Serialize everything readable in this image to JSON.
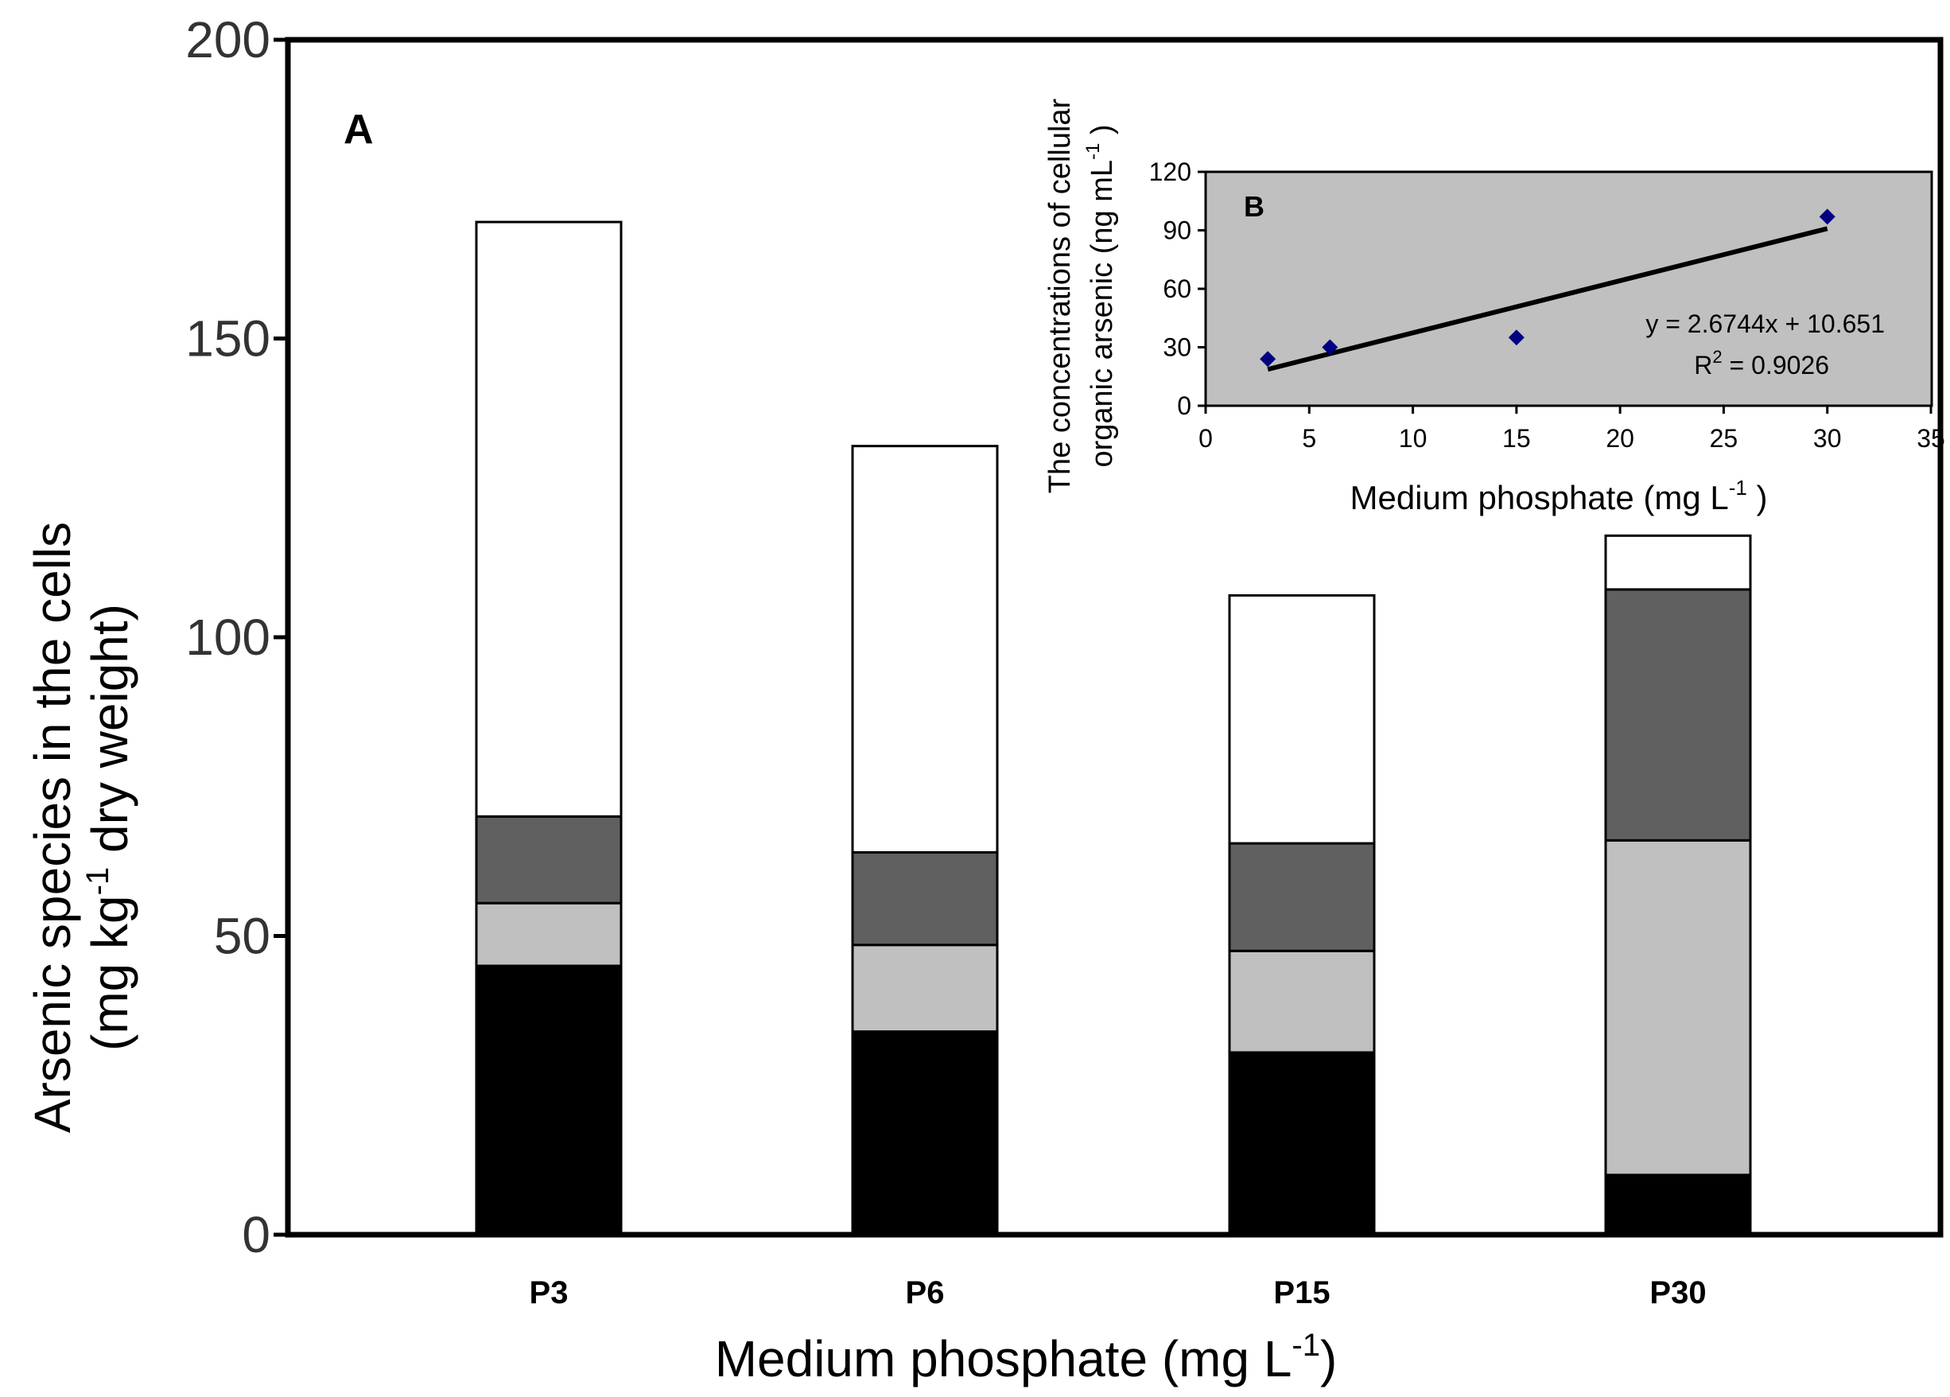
{
  "chart_data": [
    {
      "panel": "A",
      "type": "bar",
      "stacked": true,
      "categories": [
        "P3",
        "P6",
        "P15",
        "P30"
      ],
      "series": [
        {
          "name": "black segment",
          "color": "#000000",
          "values": [
            45,
            34,
            30.5,
            10
          ]
        },
        {
          "name": "light grey segment",
          "color": "#c0c0c0",
          "values": [
            10.5,
            14.5,
            17,
            56
          ]
        },
        {
          "name": "dark grey segment",
          "color": "#606060",
          "values": [
            14.5,
            15.5,
            18,
            42
          ]
        },
        {
          "name": "white segment",
          "color": "#ffffff",
          "values": [
            99.5,
            68,
            41.5,
            9
          ]
        }
      ],
      "ylim": [
        0,
        200
      ],
      "yticks": [
        "0",
        "50",
        "100",
        "150",
        "200"
      ],
      "ylabel_line1": "Arsenic species in the cells",
      "ylabel_line2_pre": "(mg kg",
      "ylabel_line2_sup": "-1",
      "ylabel_line2_post": " dry weight)",
      "xlabel_pre": "Medium phosphate (mg L",
      "xlabel_sup": "-1",
      "xlabel_post": ")"
    },
    {
      "panel": "B",
      "type": "scatter",
      "x": [
        3,
        6,
        15,
        30
      ],
      "y": [
        24,
        30,
        35,
        97
      ],
      "xlim": [
        0,
        35
      ],
      "ylim": [
        0,
        120
      ],
      "xticks": [
        "0",
        "5",
        "10",
        "15",
        "20",
        "25",
        "30",
        "35"
      ],
      "yticks": [
        "0",
        "30",
        "60",
        "90",
        "120"
      ],
      "trendline": {
        "slope": 2.6744,
        "intercept": 10.651,
        "x_range": [
          3,
          30
        ]
      },
      "equation": "y = 2.6744x + 10.651",
      "r2_pre": "R",
      "r2_sup": "2",
      "r2_post": " = 0.9026",
      "ylabel_line1": "The concentrations of  cellular",
      "ylabel_line2_pre": "organic  arsenic (ng mL",
      "ylabel_line2_sup": "-1",
      "ylabel_line2_post": " )",
      "xlabel_pre": "Medium phosphate (mg L",
      "xlabel_sup": "-1",
      "xlabel_post": " )",
      "point_color": "#000080",
      "plot_bg": "#c0c0c0"
    }
  ]
}
